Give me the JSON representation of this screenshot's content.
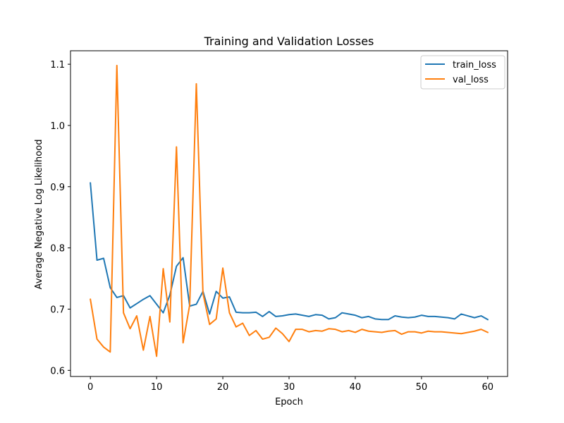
{
  "chart_data": {
    "type": "line",
    "title": "Training and Validation Losses",
    "xlabel": "Epoch",
    "ylabel": "Average Negative Log Likelihood",
    "xlim": [
      -3,
      63
    ],
    "ylim": [
      0.59,
      1.122
    ],
    "xticks": [
      0,
      10,
      20,
      30,
      40,
      50,
      60
    ],
    "yticks": [
      0.6,
      0.7,
      0.8,
      0.9,
      1.0,
      1.1
    ],
    "ytick_labels": [
      "0.6",
      "0.7",
      "0.8",
      "0.9",
      "1.0",
      "1.1"
    ],
    "grid": false,
    "legend_position": "top-right",
    "x": [
      0,
      1,
      2,
      3,
      4,
      5,
      6,
      7,
      8,
      9,
      10,
      11,
      12,
      13,
      14,
      15,
      16,
      17,
      18,
      19,
      20,
      21,
      22,
      23,
      24,
      25,
      26,
      27,
      28,
      29,
      30,
      31,
      32,
      33,
      34,
      35,
      36,
      37,
      38,
      39,
      40,
      41,
      42,
      43,
      44,
      45,
      46,
      47,
      48,
      49,
      50,
      51,
      52,
      53,
      54,
      55,
      56,
      57,
      58,
      59,
      60
    ],
    "series": [
      {
        "name": "train_loss",
        "color": "#1f77b4",
        "values": [
          0.906,
          0.78,
          0.783,
          0.735,
          0.719,
          0.722,
          0.702,
          0.709,
          0.716,
          0.722,
          0.708,
          0.694,
          0.723,
          0.77,
          0.784,
          0.705,
          0.708,
          0.729,
          0.692,
          0.729,
          0.718,
          0.72,
          0.695,
          0.694,
          0.694,
          0.695,
          0.688,
          0.696,
          0.688,
          0.689,
          0.691,
          0.692,
          0.69,
          0.688,
          0.691,
          0.69,
          0.684,
          0.686,
          0.694,
          0.692,
          0.69,
          0.686,
          0.688,
          0.684,
          0.683,
          0.683,
          0.689,
          0.687,
          0.686,
          0.687,
          0.69,
          0.688,
          0.688,
          0.687,
          0.686,
          0.684,
          0.692,
          0.689,
          0.686,
          0.689,
          0.683
        ]
      },
      {
        "name": "val_loss",
        "color": "#ff7f0e",
        "values": [
          0.716,
          0.651,
          0.638,
          0.63,
          1.098,
          0.694,
          0.668,
          0.689,
          0.633,
          0.688,
          0.623,
          0.766,
          0.679,
          0.965,
          0.645,
          0.707,
          1.068,
          0.726,
          0.675,
          0.684,
          0.767,
          0.694,
          0.671,
          0.677,
          0.657,
          0.665,
          0.651,
          0.654,
          0.669,
          0.66,
          0.647,
          0.667,
          0.667,
          0.663,
          0.665,
          0.664,
          0.668,
          0.667,
          0.663,
          0.665,
          0.662,
          0.667,
          0.664,
          0.663,
          0.662,
          0.664,
          0.665,
          0.659,
          0.663,
          0.663,
          0.661,
          0.664,
          0.663,
          0.663,
          0.662,
          0.661,
          0.66,
          0.662,
          0.664,
          0.667,
          0.662
        ]
      }
    ]
  }
}
